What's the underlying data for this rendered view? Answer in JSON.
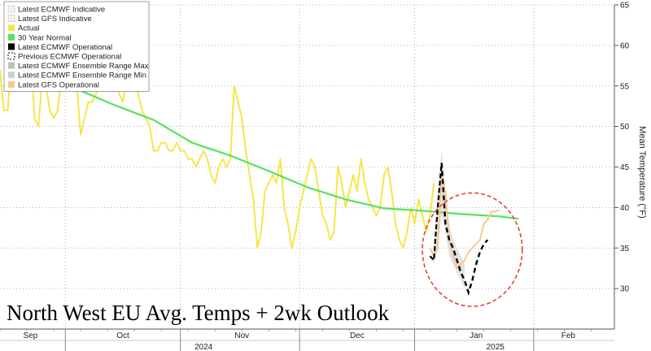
{
  "chart_data": {
    "type": "line",
    "overlay_title": "North West EU Avg. Temps + 2wk Outlook",
    "ylabel": "Mean Temperature (°F)",
    "ylim": [
      25,
      65
    ],
    "y_ticks": [
      30,
      35,
      40,
      45,
      50,
      55,
      60,
      65
    ],
    "xlim": [
      0,
      160
    ],
    "x_month_labels": [
      {
        "label": "Sep",
        "x": 2
      },
      {
        "label": "Oct",
        "x": 32
      },
      {
        "label": "Nov",
        "x": 63
      },
      {
        "label": "Dec",
        "x": 93
      },
      {
        "label": "Jan",
        "x": 124
      },
      {
        "label": "Feb",
        "x": 148
      }
    ],
    "x_month_boundaries": [
      17,
      47,
      78,
      108,
      139
    ],
    "x_year_labels": [
      {
        "label": "2024",
        "x": 53
      },
      {
        "label": "2025",
        "x": 129
      }
    ],
    "grid": true,
    "legend_position": "top-left",
    "colors": {
      "actual": "#f5e64a",
      "normal": "#55e35a",
      "ecmwf_operational": "#000000",
      "previous_ecmwf": "#000000",
      "ensemble_range": "#cccccc",
      "gfs_operational": "#f7c98f",
      "highlight_circle": "#e0453a"
    },
    "legend": [
      {
        "label": "Latest ECMWF Indicative",
        "swatch": "#f4f4f4"
      },
      {
        "label": "Latest GFS Indicative",
        "swatch": "#fbf0e4"
      },
      {
        "label": "Actual",
        "swatch": "#f5e64a"
      },
      {
        "label": "30 Year Normal",
        "swatch": "#55e35a"
      },
      {
        "label": "Latest ECMWF Operational",
        "swatch": "#000000"
      },
      {
        "label": "Previous ECMWF Operational",
        "swatch": "dashed"
      },
      {
        "label": "Latest ECMWF Ensemble Range Max",
        "swatch": "#bfbfbf"
      },
      {
        "label": "Latest ECMWF Ensemble Range Min",
        "swatch": "#cfcfcf"
      },
      {
        "label": "Latest GFS Operational",
        "swatch": "#f7c98f"
      }
    ],
    "series": [
      {
        "name": "Actual",
        "x": [
          0,
          1,
          2,
          3,
          4,
          5,
          6,
          7,
          8,
          9,
          10,
          11,
          12,
          13,
          14,
          15,
          16,
          17,
          18,
          19,
          20,
          21,
          22,
          23,
          24,
          25,
          26,
          27,
          28,
          29,
          30,
          31,
          32,
          33,
          34,
          35,
          36,
          37,
          38,
          39,
          40,
          41,
          42,
          43,
          44,
          45,
          46,
          47,
          48,
          49,
          50,
          51,
          52,
          53,
          54,
          55,
          56,
          57,
          58,
          59,
          60,
          61,
          62,
          63,
          64,
          65,
          66,
          67,
          68,
          69,
          70,
          71,
          72,
          73,
          74,
          75,
          76,
          77,
          78,
          79,
          80,
          81,
          82,
          83,
          84,
          85,
          86,
          87,
          88,
          89,
          90,
          91,
          92,
          93,
          94,
          95,
          96,
          97,
          98,
          99,
          100,
          101,
          102,
          103,
          104,
          105,
          106,
          107,
          108,
          109,
          110,
          111,
          112,
          113
        ],
        "y": [
          57,
          52,
          52,
          58,
          55,
          60,
          56,
          57,
          59,
          51,
          50,
          56,
          55,
          52,
          51,
          52,
          56,
          55,
          60,
          59,
          55,
          49,
          51,
          53,
          53,
          54,
          56,
          58,
          57,
          59,
          56,
          54,
          53,
          56,
          55,
          56,
          54,
          52,
          51,
          50,
          47,
          47,
          48,
          48,
          47,
          47,
          48,
          47,
          47,
          46,
          46,
          45,
          46,
          47,
          46,
          44,
          43,
          45,
          46,
          45,
          46,
          55,
          53,
          51,
          47,
          44,
          41,
          35,
          37,
          42,
          43,
          44,
          43,
          46,
          40,
          38,
          35,
          37,
          40,
          42,
          44,
          46,
          45,
          42,
          39,
          38,
          36,
          37,
          45,
          43,
          40,
          42,
          44,
          42,
          46,
          43,
          41,
          40,
          39,
          40,
          44,
          45,
          42,
          38,
          36,
          35,
          37,
          40,
          38,
          41,
          39,
          37,
          39,
          43
        ]
      },
      {
        "name": "30 Year Normal",
        "x": [
          20,
          30,
          40,
          50,
          60,
          70,
          80,
          90,
          100,
          110,
          120,
          130,
          135
        ],
        "y": [
          54.6,
          52.6,
          50.8,
          48.0,
          46.4,
          44.5,
          42.5,
          41.0,
          39.9,
          39.6,
          39.2,
          38.9,
          38.6
        ]
      },
      {
        "name": "Latest ECMWF Operational",
        "x": [
          112,
          113,
          114,
          115
        ],
        "y": [
          34,
          33.5,
          40,
          45.5
        ]
      },
      {
        "name": "Previous ECMWF Operational",
        "x": [
          115,
          116,
          117,
          118,
          119,
          120,
          121,
          122,
          123,
          124,
          125,
          126,
          127
        ],
        "y": [
          45.5,
          38,
          36,
          35,
          33.5,
          32,
          31,
          29.5,
          31,
          33,
          34.5,
          35.5,
          36
        ]
      },
      {
        "name": "Latest GFS Operational",
        "x": [
          112,
          113,
          114,
          115,
          116,
          117,
          118,
          119,
          120,
          121,
          122,
          123,
          124,
          125,
          126,
          127,
          128,
          129,
          130
        ],
        "y": [
          35,
          34,
          35,
          44,
          42,
          36,
          34,
          32.5,
          33,
          33.5,
          34.5,
          35,
          35.5,
          36,
          38,
          38.5,
          39.5,
          39.5,
          39.7
        ]
      },
      {
        "name": "Latest ECMWF Ensemble Range Max",
        "x": [
          113,
          114,
          115,
          116,
          117,
          118,
          119,
          120,
          121
        ],
        "y": [
          36,
          41,
          47,
          42,
          38,
          36,
          35,
          34,
          33
        ]
      },
      {
        "name": "Latest ECMWF Ensemble Range Min",
        "x": [
          113,
          114,
          115,
          116,
          117,
          118,
          119,
          120,
          121
        ],
        "y": [
          33,
          35,
          39,
          37,
          34,
          33,
          32,
          31,
          30
        ]
      }
    ],
    "highlight_ellipse": {
      "cx": 123,
      "cy": 34.8,
      "rx": 13,
      "ry": 7
    }
  }
}
